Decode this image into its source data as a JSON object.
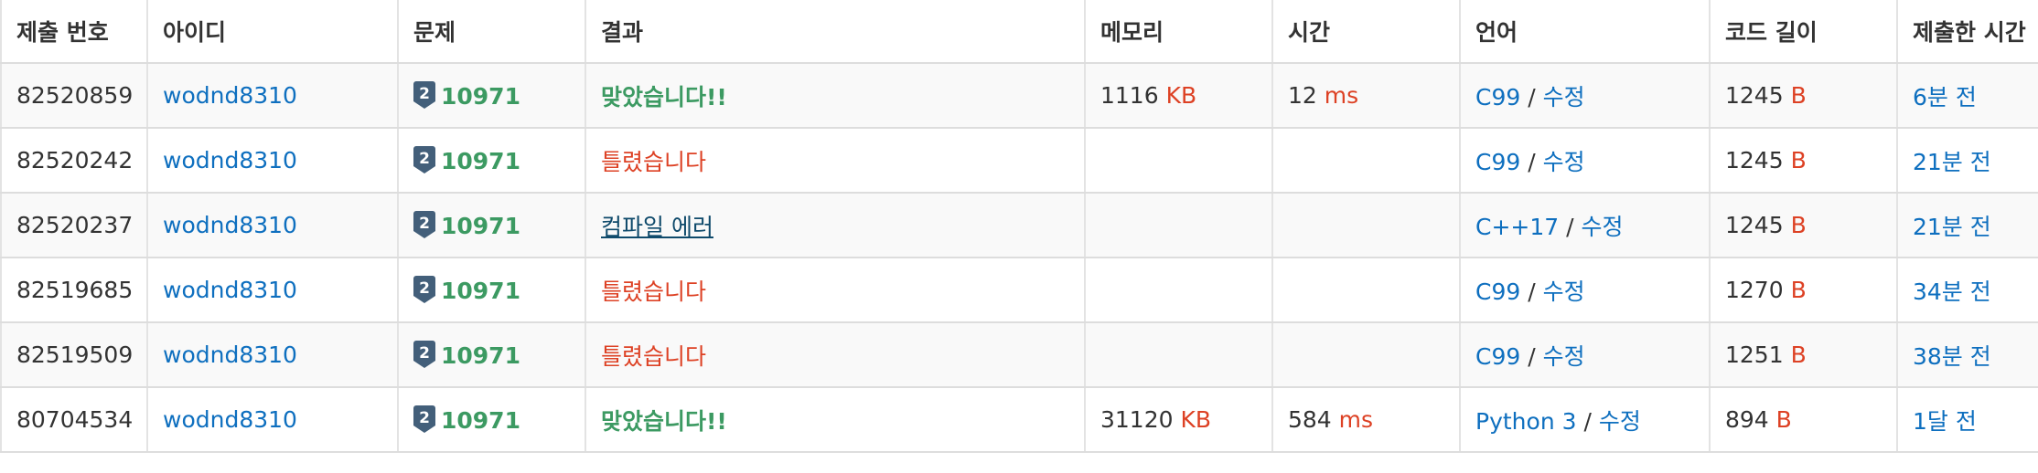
{
  "headers": {
    "submission_id": "제출 번호",
    "user_id": "아이디",
    "problem": "문제",
    "result": "결과",
    "memory": "메모리",
    "time": "시간",
    "language": "언어",
    "code_length": "코드 길이",
    "submitted_at": "제출한 시간"
  },
  "units": {
    "memory": "KB",
    "time": "ms",
    "length": "B"
  },
  "edit_label": "수정",
  "slash": " / ",
  "tier_badge": {
    "icon": "silver-tier-badge-icon",
    "text": "2",
    "color": "#435f7a"
  },
  "colors": {
    "link": "#0e6fbf",
    "accepted": "#3c9a62",
    "wrong": "#dd4124",
    "compile_error": "#0f4a6b",
    "unit": "#dd4124"
  },
  "rows": [
    {
      "submission_id": "82520859",
      "user_id": "wodnd8310",
      "problem_id": "10971",
      "result": "맞았습니다!!",
      "result_type": "accepted",
      "memory": "1116",
      "time": "12",
      "language": "C99",
      "code_length": "1245",
      "submitted_at": "6분 전"
    },
    {
      "submission_id": "82520242",
      "user_id": "wodnd8310",
      "problem_id": "10971",
      "result": "틀렸습니다",
      "result_type": "wrong",
      "memory": "",
      "time": "",
      "language": "C99",
      "code_length": "1245",
      "submitted_at": "21분 전"
    },
    {
      "submission_id": "82520237",
      "user_id": "wodnd8310",
      "problem_id": "10971",
      "result": "컴파일 에러",
      "result_type": "compile_error",
      "memory": "",
      "time": "",
      "language": "C++17",
      "code_length": "1245",
      "submitted_at": "21분 전"
    },
    {
      "submission_id": "82519685",
      "user_id": "wodnd8310",
      "problem_id": "10971",
      "result": "틀렸습니다",
      "result_type": "wrong",
      "memory": "",
      "time": "",
      "language": "C99",
      "code_length": "1270",
      "submitted_at": "34분 전"
    },
    {
      "submission_id": "82519509",
      "user_id": "wodnd8310",
      "problem_id": "10971",
      "result": "틀렸습니다",
      "result_type": "wrong",
      "memory": "",
      "time": "",
      "language": "C99",
      "code_length": "1251",
      "submitted_at": "38분 전"
    },
    {
      "submission_id": "80704534",
      "user_id": "wodnd8310",
      "problem_id": "10971",
      "result": "맞았습니다!!",
      "result_type": "accepted",
      "memory": "31120",
      "time": "584",
      "language": "Python 3",
      "code_length": "894",
      "submitted_at": "1달 전"
    }
  ]
}
